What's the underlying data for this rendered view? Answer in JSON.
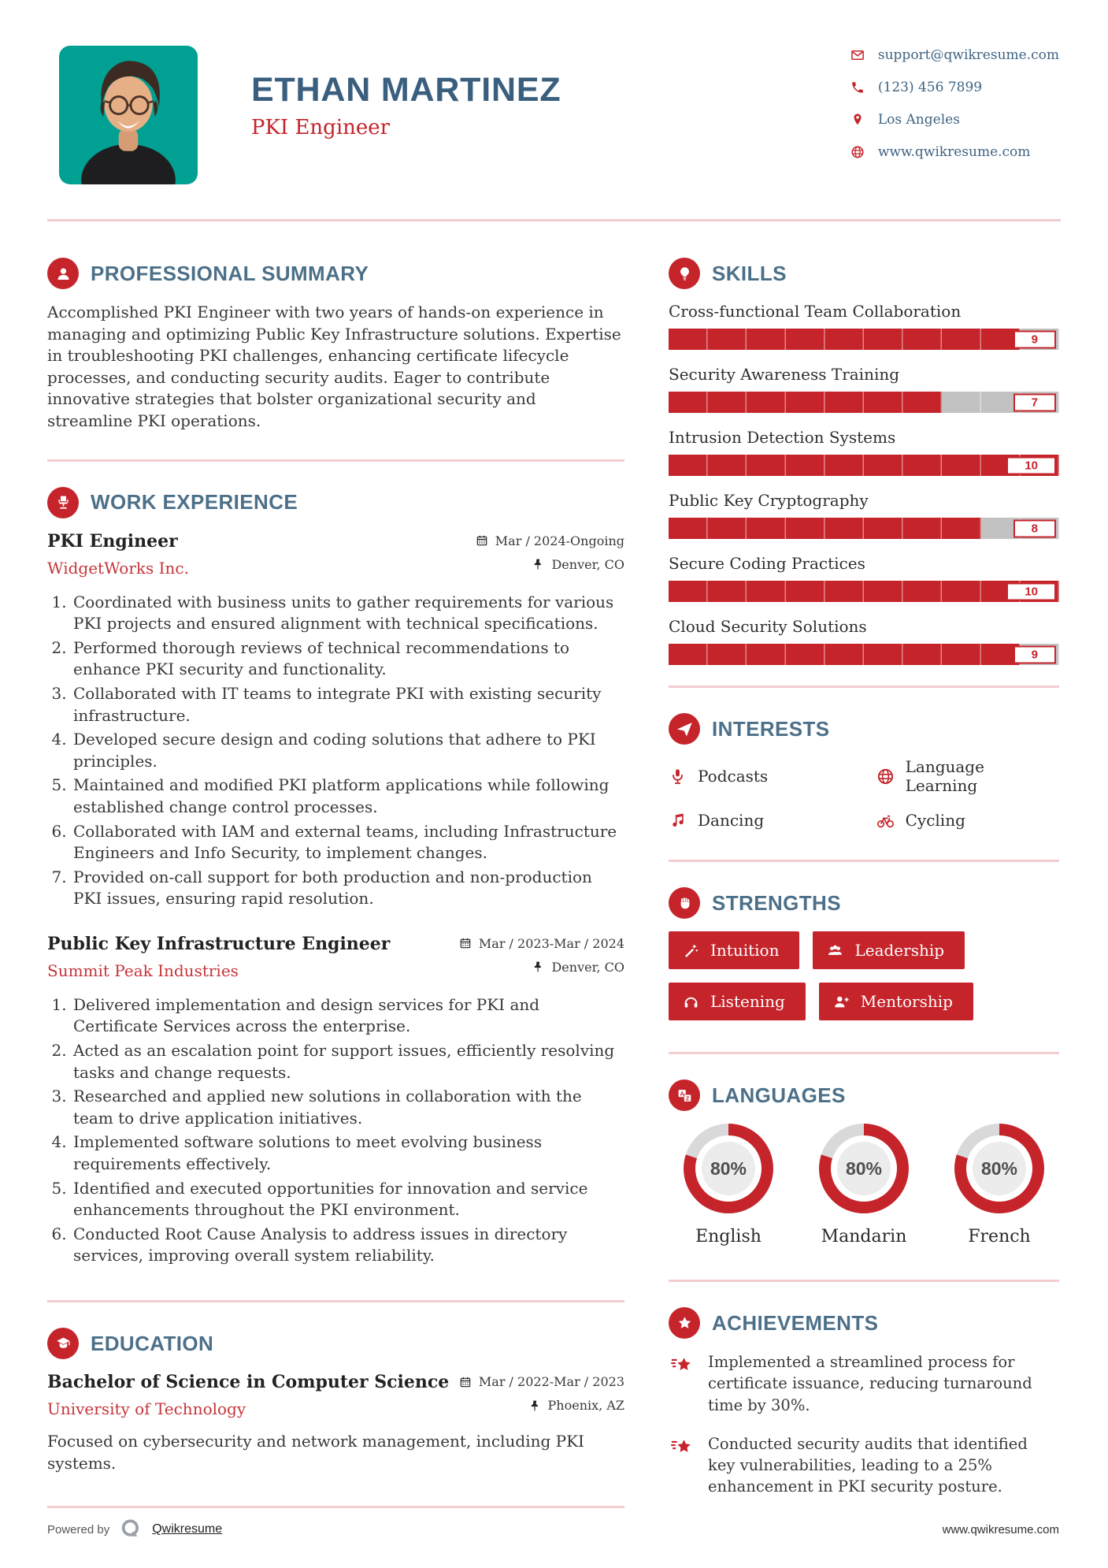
{
  "colors": {
    "accent": "#c5242b",
    "heading_blue": "#4c7089",
    "name_blue": "#3a5e7e",
    "photo_background": "#00a093",
    "divider_pink": "#f3cdd0",
    "bar_track_gray": "#c2c2c2"
  },
  "header": {
    "name": "ETHAN MARTINEZ",
    "title": "PKI Engineer",
    "contact": [
      {
        "icon": "envelope-icon",
        "text": "support@qwikresume.com",
        "interactable": true
      },
      {
        "icon": "phone-icon",
        "text": "(123) 456 7899",
        "interactable": false
      },
      {
        "icon": "map-pin-icon",
        "text": "Los Angeles",
        "interactable": false
      },
      {
        "icon": "globe-icon",
        "text": "www.qwikresume.com",
        "interactable": true
      }
    ]
  },
  "summary": {
    "heading": "PROFESSIONAL SUMMARY",
    "icon": "user-icon",
    "body": "Accomplished PKI Engineer with two years of hands-on experience in managing and optimizing Public Key Infrastructure solutions. Expertise in troubleshooting PKI challenges, enhancing certificate lifecycle processes, and conducting security audits. Eager to contribute innovative strategies that bolster organizational security and streamline PKI operations."
  },
  "experience": {
    "heading": "WORK EXPERIENCE",
    "icon": "office-chair-icon",
    "jobs": [
      {
        "title": "PKI Engineer",
        "company": "WidgetWorks Inc.",
        "dates": "Mar / 2024-Ongoing",
        "location": "Denver, CO",
        "bullets": [
          "Coordinated with business units to gather requirements for various PKI projects and ensured alignment with technical specifications.",
          "Performed thorough reviews of technical recommendations to enhance PKI security and functionality.",
          "Collaborated with IT teams to integrate PKI with existing security infrastructure.",
          "Developed secure design and coding solutions that adhere to PKI principles.",
          "Maintained and modified PKI platform applications while following established change control processes.",
          "Collaborated with IAM and external teams, including Infrastructure Engineers and Info Security, to implement changes.",
          "Provided on-call support for both production and non-production PKI issues, ensuring rapid resolution."
        ]
      },
      {
        "title": "Public Key Infrastructure Engineer",
        "company": "Summit Peak Industries",
        "dates": "Mar / 2023-Mar / 2024",
        "location": "Denver, CO",
        "bullets": [
          "Delivered implementation and design services for PKI and Certificate Services across the enterprise.",
          "Acted as an escalation point for support issues, efficiently resolving tasks and change requests.",
          "Researched and applied new solutions in collaboration with the team to drive application initiatives.",
          "Implemented software solutions to meet evolving business requirements effectively.",
          "Identified and executed opportunities for innovation and service enhancements throughout the PKI environment.",
          "Conducted Root Cause Analysis to address issues in directory services, improving overall system reliability."
        ]
      }
    ]
  },
  "education": {
    "heading": "EDUCATION",
    "icon": "graduate-icon",
    "degree": "Bachelor of Science in Computer Science",
    "school": "University of Technology",
    "dates": "Mar / 2022-Mar / 2023",
    "location": "Phoenix, AZ",
    "description": "Focused on cybersecurity and network management, including PKI systems."
  },
  "skills": {
    "heading": "SKILLS",
    "icon": "lightbulb-icon",
    "max_score": 10,
    "items": [
      {
        "name": "Cross-functional Team Collaboration",
        "score": 9
      },
      {
        "name": "Security Awareness Training",
        "score": 7
      },
      {
        "name": "Intrusion Detection Systems",
        "score": 10
      },
      {
        "name": "Public Key Cryptography",
        "score": 8
      },
      {
        "name": "Secure Coding Practices",
        "score": 10
      },
      {
        "name": "Cloud Security Solutions",
        "score": 9
      }
    ]
  },
  "interests": {
    "heading": "INTERESTS",
    "icon": "paper-plane-icon",
    "items": [
      {
        "icon": "microphone-icon",
        "label": "Podcasts"
      },
      {
        "icon": "globe-icon",
        "label": "Language Learning"
      },
      {
        "icon": "music-note-icon",
        "label": "Dancing"
      },
      {
        "icon": "bicycle-icon",
        "label": "Cycling"
      }
    ]
  },
  "strengths": {
    "heading": "STRENGTHS",
    "icon": "fist-icon",
    "items": [
      {
        "icon": "magic-wand-icon",
        "label": "Intuition"
      },
      {
        "icon": "users-icon",
        "label": "Leadership"
      },
      {
        "icon": "headphones-icon",
        "label": "Listening"
      },
      {
        "icon": "person-plus-icon",
        "label": "Mentorship"
      }
    ]
  },
  "languages": {
    "heading": "LANGUAGES",
    "icon": "translate-icon",
    "items": [
      {
        "label": "English",
        "percent": 80
      },
      {
        "label": "Mandarin",
        "percent": 80
      },
      {
        "label": "French",
        "percent": 80
      }
    ]
  },
  "achievements": {
    "heading": "ACHIEVEMENTS",
    "icon": "award-star-icon",
    "items": [
      {
        "icon": "shooting-star-icon",
        "text": "Implemented a streamlined process for certificate issuance, reducing turnaround time by 30%."
      },
      {
        "icon": "shooting-star-icon",
        "text": "Conducted security audits that identified key vulnerabilities, leading to a 25% enhancement in PKI security posture."
      }
    ]
  },
  "footer": {
    "powered_by": "Powered by",
    "brand": "Qwikresume",
    "site": "www.qwikresume.com"
  }
}
